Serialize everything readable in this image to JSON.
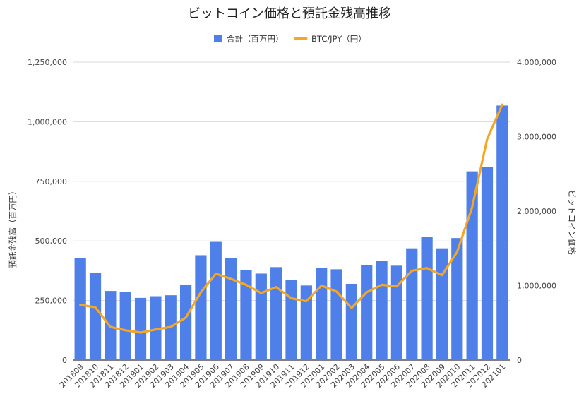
{
  "chart_data": {
    "type": "bar",
    "title": "ビットコイン価格と預託金残高推移",
    "categories": [
      "201809",
      "201810",
      "201811",
      "201812",
      "201901",
      "201902",
      "201903",
      "201904",
      "201905",
      "201906",
      "201907",
      "201908",
      "201909",
      "201910",
      "201911",
      "201912",
      "202001",
      "202002",
      "202003",
      "202004",
      "202005",
      "202006",
      "202007",
      "202008",
      "202009",
      "202010",
      "202011",
      "202012",
      "202101"
    ],
    "series": [
      {
        "name": "合計（百万円）",
        "type": "bar",
        "axis": "left",
        "color": "#4f7fe8",
        "values": [
          428000,
          366000,
          290000,
          287000,
          261000,
          268000,
          272000,
          317000,
          440000,
          496000,
          428000,
          378000,
          363000,
          390000,
          337000,
          313000,
          386000,
          381000,
          320000,
          397000,
          416000,
          396000,
          469000,
          516000,
          469000,
          512000,
          792000,
          810000,
          1068000
        ]
      },
      {
        "name": "BTC/JPY（円）",
        "type": "line",
        "axis": "right",
        "color": "#f5a623",
        "values": [
          740000,
          710000,
          445000,
          400000,
          370000,
          410000,
          445000,
          570000,
          910000,
          1160000,
          1090000,
          1010000,
          900000,
          980000,
          830000,
          790000,
          1000000,
          920000,
          700000,
          910000,
          1010000,
          990000,
          1200000,
          1235000,
          1140000,
          1450000,
          2050000,
          2970000,
          3430000
        ]
      }
    ],
    "left_axis": {
      "label": "預託金残高（百万円）",
      "min": 0,
      "max": 1250000,
      "ticks": [
        0,
        250000,
        500000,
        750000,
        1000000,
        1250000
      ],
      "tick_labels": [
        "0",
        "250,000",
        "500,000",
        "750,000",
        "1,000,000",
        "1,250,000"
      ]
    },
    "right_axis": {
      "label": "ビットコイン価格",
      "min": 0,
      "max": 4000000,
      "ticks": [
        0,
        1000000,
        2000000,
        3000000,
        4000000
      ],
      "tick_labels": [
        "0",
        "1,000,000",
        "2,000,000",
        "3,000,000",
        "4,000,000"
      ]
    },
    "grid": true,
    "legend_position": "top"
  }
}
